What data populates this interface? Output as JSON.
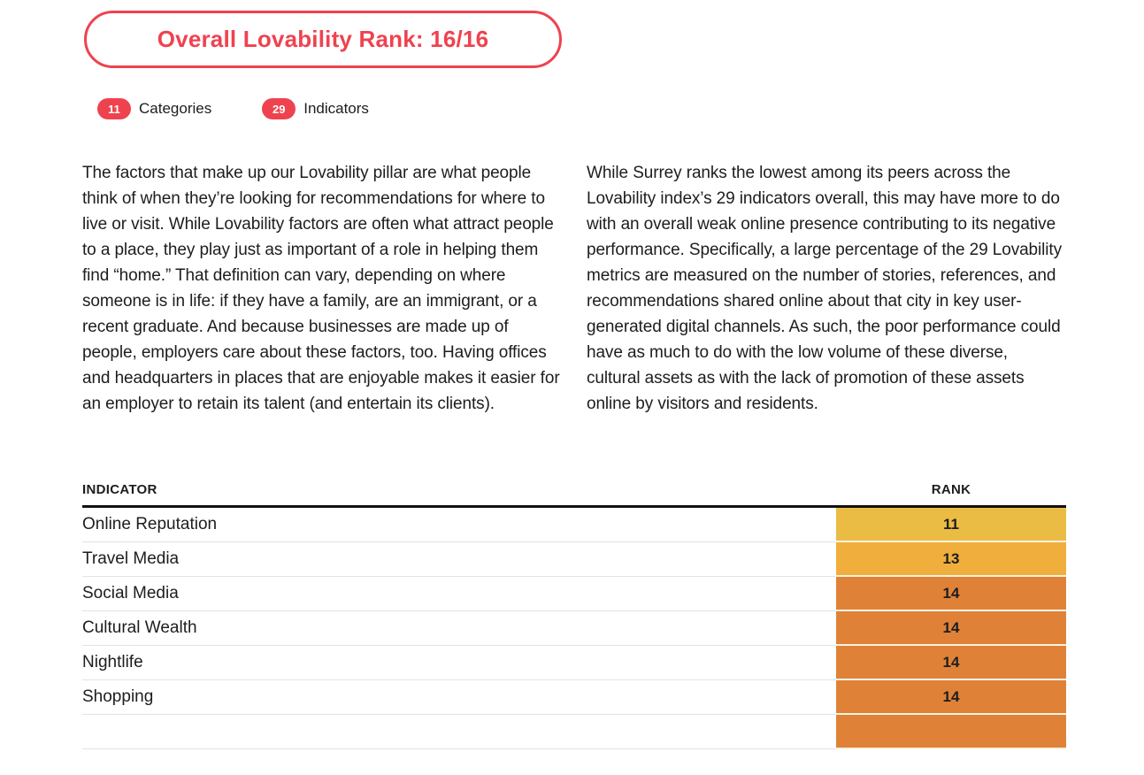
{
  "header": {
    "title": "Overall Lovability Rank: 16/16",
    "badges": [
      {
        "count": "11",
        "label": "Categories"
      },
      {
        "count": "29",
        "label": "Indicators"
      }
    ]
  },
  "intro": {
    "left_paragraph": "The factors that make up our Lovability pillar are what people think of when they’re looking for recommendations for where to live or visit. While Lovability factors are often what attract people to a place, they play just as important of a role in helping them find “home.” That definition can vary, depending on where someone is in life: if they have a family, are an immigrant, or a recent graduate. And because businesses are made up of people, employers care about these factors, too. Having offices and headquarters in places that are enjoyable makes it easier for an employer to retain its talent (and entertain its clients).",
    "right_paragraph": "While Surrey ranks the lowest among its peers across the Lovability index’s 29 indicators overall, this may have more to do with an overall weak online presence contributing to its negative performance. Specifically, a large percentage of the 29 Lovability metrics are measured on the number of stories, references, and recommendations shared online about that city in key user-generated digital channels. As such, the poor performance could have as much to do with the low volume of these diverse, cultural assets as with the lack of promotion of these assets online by visitors and residents."
  },
  "table": {
    "columns": [
      "INDICATOR",
      "RANK"
    ],
    "rows": [
      {
        "indicator": "Online Reputation",
        "rank": "11",
        "color": "#EBBC43"
      },
      {
        "indicator": "Travel Media",
        "rank": "13",
        "color": "#F0AF3D"
      },
      {
        "indicator": "Social Media",
        "rank": "14",
        "color": "#DF8238"
      },
      {
        "indicator": "Cultural Wealth",
        "rank": "14",
        "color": "#DF8238"
      },
      {
        "indicator": "Nightlife",
        "rank": "14",
        "color": "#DF8238"
      },
      {
        "indicator": "Shopping",
        "rank": "14",
        "color": "#DF8238"
      },
      {
        "indicator": "",
        "rank": "",
        "color": "#DF8238",
        "partial": true
      }
    ]
  },
  "colors": {
    "accent_red": "#EF424F",
    "text": "#1D1D1F",
    "rank_gold": "#EBBC43",
    "rank_amber": "#F0AF3D",
    "rank_orange": "#DF8238",
    "row_divider": "#E3E3E3",
    "header_rule": "#111111"
  }
}
